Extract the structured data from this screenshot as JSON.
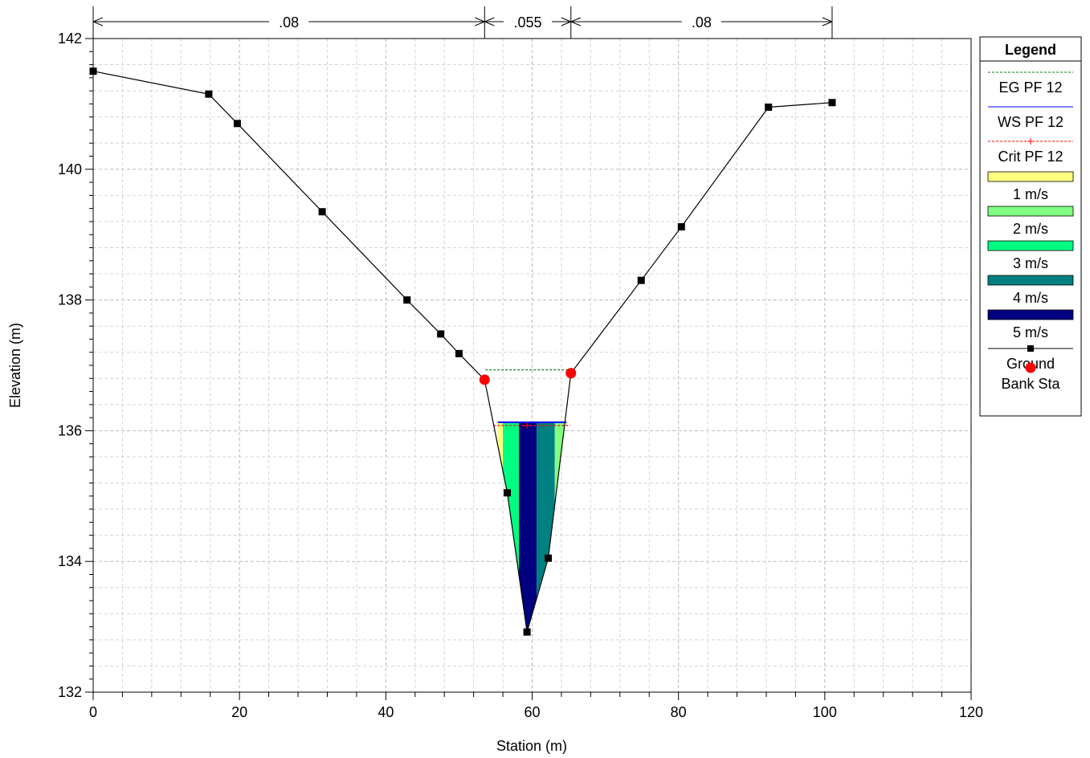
{
  "chart_data": {
    "type": "cross-section",
    "xlabel": "Station (m)",
    "ylabel": "Elevation (m)",
    "xlim": [
      0,
      120
    ],
    "ylim": [
      132,
      142
    ],
    "x_ticks": [
      "0",
      "20",
      "40",
      "60",
      "80",
      "100",
      "120"
    ],
    "y_ticks": [
      "132",
      "134",
      "136",
      "138",
      "140",
      "142"
    ],
    "grid": true,
    "legend_position": "right",
    "legend_title": "Legend",
    "legend": [
      {
        "label": "EG PF 12",
        "kind": "line",
        "style": "dashed",
        "color": "#008000"
      },
      {
        "label": "WS PF 12",
        "kind": "line",
        "style": "solid",
        "color": "#0000ff"
      },
      {
        "label": "Crit PF 12",
        "kind": "line",
        "style": "dashed-plus",
        "color": "#ff0000"
      },
      {
        "label": "1 m/s",
        "kind": "swatch",
        "color": "#ffff80"
      },
      {
        "label": "2 m/s",
        "kind": "swatch",
        "color": "#80ff80"
      },
      {
        "label": "3 m/s",
        "kind": "swatch",
        "color": "#00ff80"
      },
      {
        "label": "4 m/s",
        "kind": "swatch",
        "color": "#008080"
      },
      {
        "label": "5 m/s",
        "kind": "swatch",
        "color": "#000080"
      },
      {
        "label": "Ground",
        "kind": "line-marker",
        "color": "#000000"
      },
      {
        "label": "Bank Sta",
        "kind": "dot",
        "color": "#ff0000"
      }
    ],
    "manning": [
      {
        "label": ".08",
        "from": 0,
        "to": 53.5
      },
      {
        "label": ".055",
        "from": 53.5,
        "to": 65.3
      },
      {
        "label": ".08",
        "from": 65.3,
        "to": 101
      }
    ],
    "ground": [
      [
        0,
        141.5
      ],
      [
        15.8,
        141.15
      ],
      [
        19.7,
        140.7
      ],
      [
        31.3,
        139.35
      ],
      [
        42.9,
        138.0
      ],
      [
        47.5,
        137.48
      ],
      [
        50.0,
        137.18
      ],
      [
        53.5,
        136.78
      ],
      [
        56.6,
        135.05
      ],
      [
        59.3,
        132.92
      ],
      [
        62.2,
        134.05
      ],
      [
        65.3,
        136.88
      ],
      [
        74.9,
        138.3
      ],
      [
        80.4,
        139.12
      ],
      [
        92.3,
        140.95
      ],
      [
        101.0,
        141.02
      ]
    ],
    "bank_stations": [
      [
        53.5,
        136.78
      ],
      [
        65.3,
        136.88
      ]
    ],
    "eg": {
      "elevation": 136.93,
      "x_from": 53.6,
      "x_to": 65.3
    },
    "ws": {
      "elevation": 136.13,
      "x_from": 55.3,
      "x_to": 64.7
    },
    "crit": {
      "elevation": 136.08,
      "x_from": 54.7,
      "x_to": 65.2,
      "marker_x": 59.3
    },
    "velocity_bands": [
      {
        "x_from": 55.3,
        "x_to": 56.0,
        "velocity": "1 m/s"
      },
      {
        "x_from": 56.0,
        "x_to": 58.2,
        "velocity": "3 m/s"
      },
      {
        "x_from": 58.2,
        "x_to": 60.6,
        "velocity": "5 m/s"
      },
      {
        "x_from": 60.6,
        "x_to": 63.1,
        "velocity": "4 m/s"
      },
      {
        "x_from": 63.1,
        "x_to": 64.7,
        "velocity": "2 m/s"
      }
    ]
  }
}
